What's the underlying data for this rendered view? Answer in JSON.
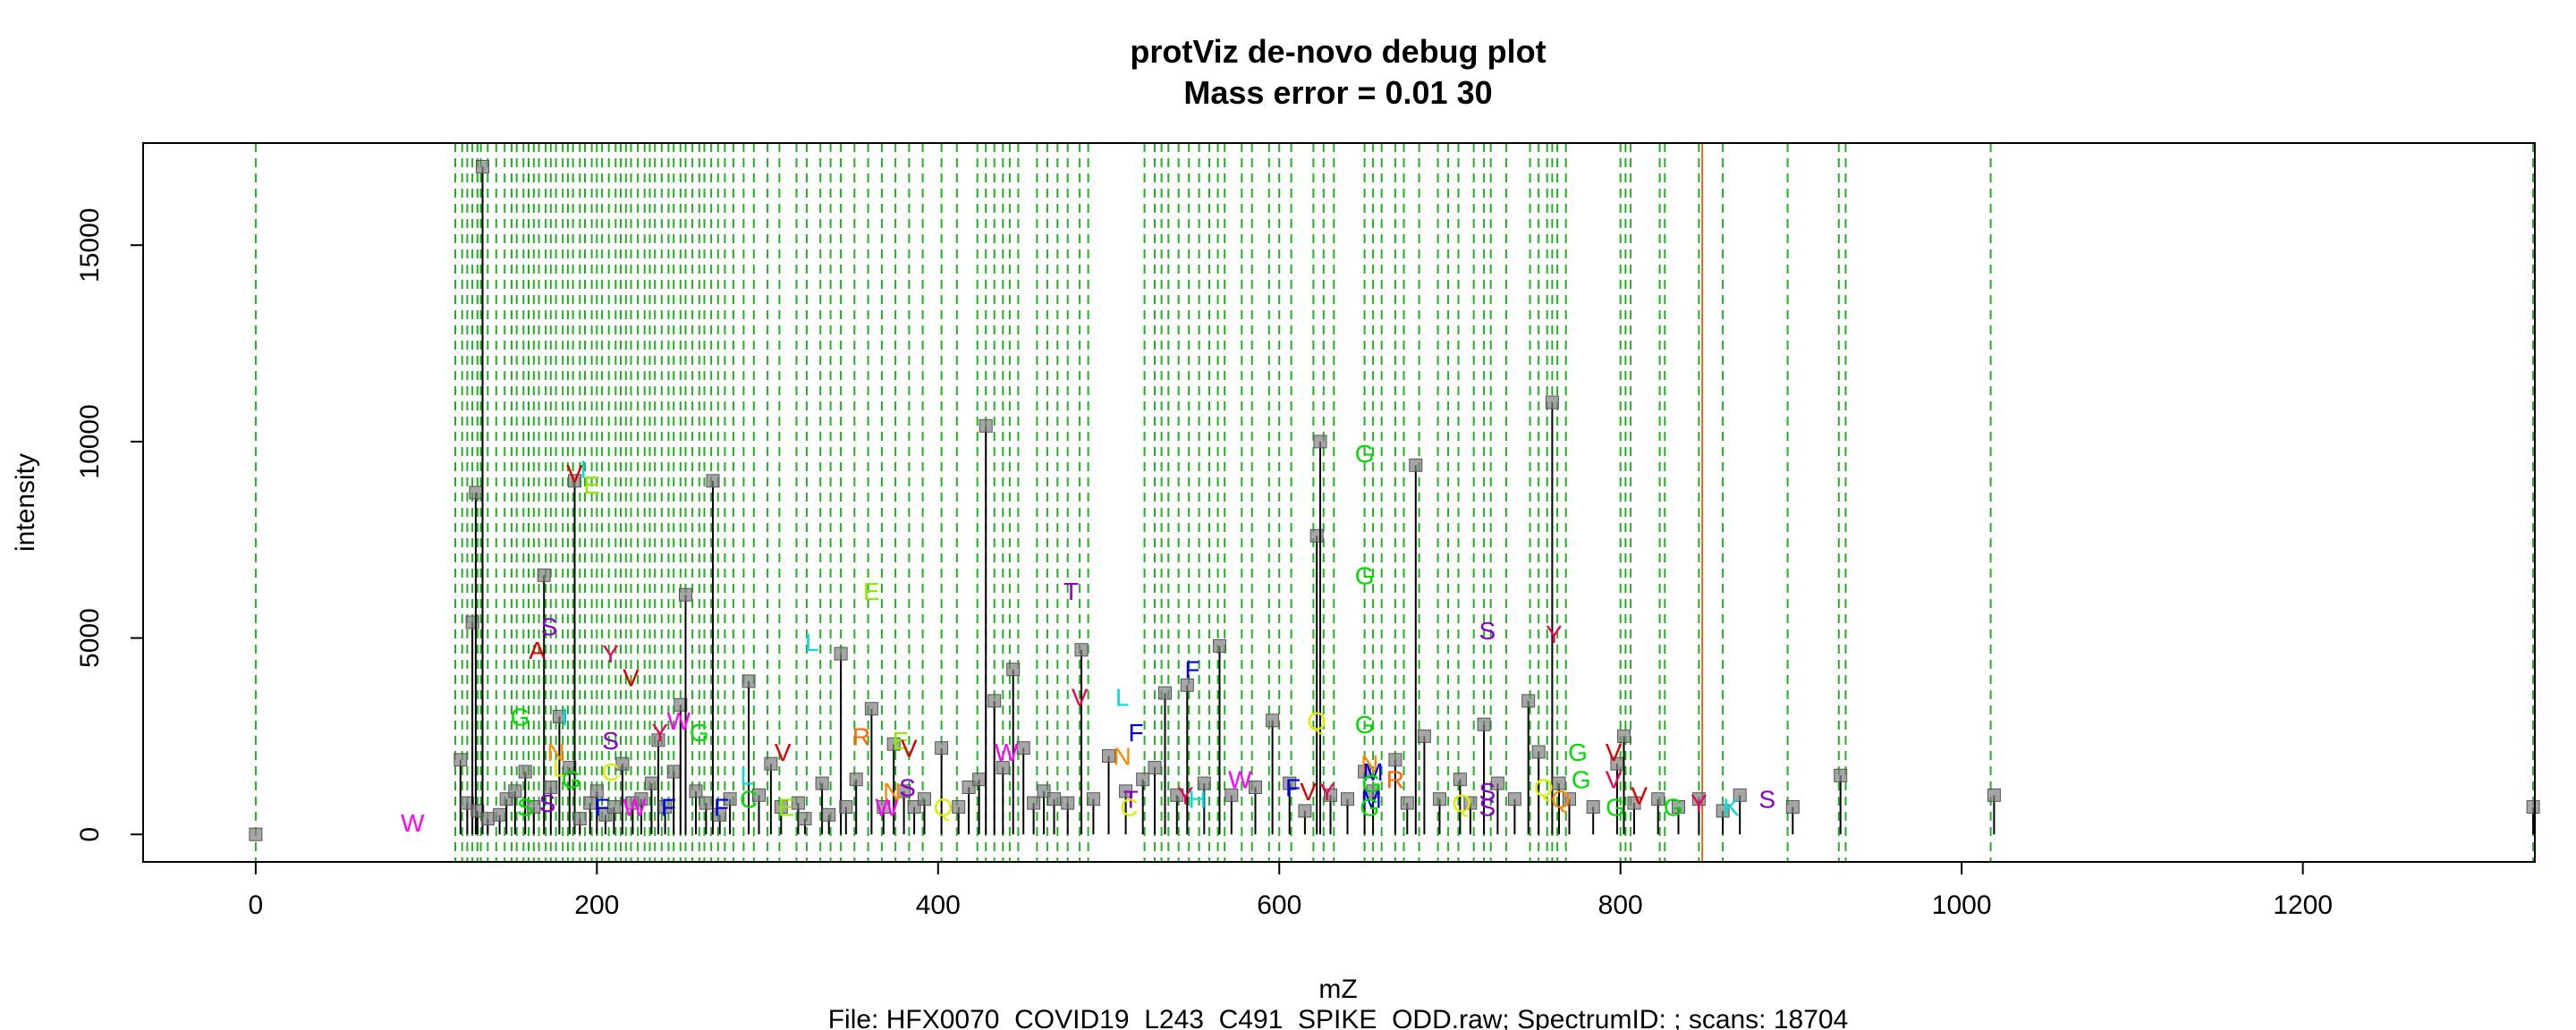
{
  "chart_data": {
    "type": "scatter",
    "title": "protViz de-novo debug plot",
    "subtitle": "Mass error = 0.01 30",
    "xlabel": "mZ",
    "ylabel": "intensity",
    "footer": "File: HFX0070_COVID19_L243_C491_SPIKE_ODD.raw; SpectrumID: ; scans: 18704",
    "xlim": [
      -66,
      1336
    ],
    "ylim": [
      -700,
      17600
    ],
    "x_ticks": [
      0,
      200,
      400,
      600,
      800,
      1000,
      1200
    ],
    "y_ticks": [
      0,
      5000,
      10000,
      15000
    ],
    "x_tick_labels": [
      "0",
      "200",
      "400",
      "600",
      "800",
      "1000",
      "1200"
    ],
    "y_tick_labels": [
      "0",
      "5000",
      "10000",
      "15000"
    ],
    "grid": false,
    "colors": {
      "green_line": "#22b022",
      "red_line": "#d2691e",
      "peak": "#000000",
      "point": "#808080"
    },
    "peaks": [
      {
        "mz": 0,
        "i": 0
      },
      {
        "mz": 120,
        "i": 1900
      },
      {
        "mz": 124,
        "i": 800
      },
      {
        "mz": 127,
        "i": 5400
      },
      {
        "mz": 129,
        "i": 8700
      },
      {
        "mz": 130,
        "i": 600
      },
      {
        "mz": 133,
        "i": 17000
      },
      {
        "mz": 136,
        "i": 400
      },
      {
        "mz": 143,
        "i": 500
      },
      {
        "mz": 147,
        "i": 900
      },
      {
        "mz": 152,
        "i": 1100
      },
      {
        "mz": 158,
        "i": 1600
      },
      {
        "mz": 163,
        "i": 700
      },
      {
        "mz": 169,
        "i": 6600
      },
      {
        "mz": 173,
        "i": 1200
      },
      {
        "mz": 178,
        "i": 3000
      },
      {
        "mz": 184,
        "i": 1700
      },
      {
        "mz": 187,
        "i": 9000
      },
      {
        "mz": 190,
        "i": 400
      },
      {
        "mz": 196,
        "i": 800
      },
      {
        "mz": 200,
        "i": 1100
      },
      {
        "mz": 205,
        "i": 500
      },
      {
        "mz": 210,
        "i": 700
      },
      {
        "mz": 215,
        "i": 1800
      },
      {
        "mz": 221,
        "i": 800
      },
      {
        "mz": 226,
        "i": 900
      },
      {
        "mz": 232,
        "i": 1300
      },
      {
        "mz": 236,
        "i": 2400
      },
      {
        "mz": 240,
        "i": 700
      },
      {
        "mz": 245,
        "i": 1600
      },
      {
        "mz": 249,
        "i": 3300
      },
      {
        "mz": 252,
        "i": 6100
      },
      {
        "mz": 258,
        "i": 1100
      },
      {
        "mz": 264,
        "i": 800
      },
      {
        "mz": 268,
        "i": 9000
      },
      {
        "mz": 272,
        "i": 500
      },
      {
        "mz": 278,
        "i": 900
      },
      {
        "mz": 289,
        "i": 3900
      },
      {
        "mz": 295,
        "i": 1000
      },
      {
        "mz": 302,
        "i": 1800
      },
      {
        "mz": 308,
        "i": 700
      },
      {
        "mz": 318,
        "i": 800
      },
      {
        "mz": 322,
        "i": 400
      },
      {
        "mz": 332,
        "i": 1300
      },
      {
        "mz": 336,
        "i": 500
      },
      {
        "mz": 343,
        "i": 4600
      },
      {
        "mz": 346,
        "i": 700
      },
      {
        "mz": 352,
        "i": 1400
      },
      {
        "mz": 361,
        "i": 3200
      },
      {
        "mz": 368,
        "i": 700
      },
      {
        "mz": 374,
        "i": 2300
      },
      {
        "mz": 380,
        "i": 1100
      },
      {
        "mz": 386,
        "i": 700
      },
      {
        "mz": 392,
        "i": 900
      },
      {
        "mz": 402,
        "i": 2200
      },
      {
        "mz": 412,
        "i": 700
      },
      {
        "mz": 418,
        "i": 1200
      },
      {
        "mz": 424,
        "i": 1400
      },
      {
        "mz": 428,
        "i": 10400
      },
      {
        "mz": 433,
        "i": 3400
      },
      {
        "mz": 438,
        "i": 1700
      },
      {
        "mz": 444,
        "i": 4200
      },
      {
        "mz": 450,
        "i": 2200
      },
      {
        "mz": 456,
        "i": 800
      },
      {
        "mz": 462,
        "i": 1100
      },
      {
        "mz": 468,
        "i": 900
      },
      {
        "mz": 476,
        "i": 800
      },
      {
        "mz": 484,
        "i": 4700
      },
      {
        "mz": 491,
        "i": 900
      },
      {
        "mz": 500,
        "i": 2000
      },
      {
        "mz": 510,
        "i": 1100
      },
      {
        "mz": 520,
        "i": 1400
      },
      {
        "mz": 527,
        "i": 1700
      },
      {
        "mz": 533,
        "i": 3600
      },
      {
        "mz": 540,
        "i": 1000
      },
      {
        "mz": 546,
        "i": 3800
      },
      {
        "mz": 556,
        "i": 1300
      },
      {
        "mz": 565,
        "i": 4800
      },
      {
        "mz": 572,
        "i": 1000
      },
      {
        "mz": 586,
        "i": 1200
      },
      {
        "mz": 596,
        "i": 2900
      },
      {
        "mz": 606,
        "i": 1300
      },
      {
        "mz": 615,
        "i": 600
      },
      {
        "mz": 622,
        "i": 7600
      },
      {
        "mz": 624,
        "i": 10000
      },
      {
        "mz": 630,
        "i": 1000
      },
      {
        "mz": 640,
        "i": 900
      },
      {
        "mz": 650,
        "i": 1600
      },
      {
        "mz": 655,
        "i": 1100
      },
      {
        "mz": 668,
        "i": 1900
      },
      {
        "mz": 675,
        "i": 800
      },
      {
        "mz": 680,
        "i": 9400
      },
      {
        "mz": 685,
        "i": 2500
      },
      {
        "mz": 694,
        "i": 900
      },
      {
        "mz": 706,
        "i": 1400
      },
      {
        "mz": 712,
        "i": 800
      },
      {
        "mz": 720,
        "i": 2800
      },
      {
        "mz": 728,
        "i": 1300
      },
      {
        "mz": 738,
        "i": 900
      },
      {
        "mz": 746,
        "i": 3400
      },
      {
        "mz": 752,
        "i": 2100
      },
      {
        "mz": 760,
        "i": 11000
      },
      {
        "mz": 764,
        "i": 1300
      },
      {
        "mz": 770,
        "i": 900
      },
      {
        "mz": 784,
        "i": 700
      },
      {
        "mz": 798,
        "i": 1800
      },
      {
        "mz": 802,
        "i": 2500
      },
      {
        "mz": 808,
        "i": 800
      },
      {
        "mz": 822,
        "i": 900
      },
      {
        "mz": 834,
        "i": 700
      },
      {
        "mz": 846,
        "i": 900
      },
      {
        "mz": 860,
        "i": 600
      },
      {
        "mz": 870,
        "i": 1000
      },
      {
        "mz": 901,
        "i": 700
      },
      {
        "mz": 929,
        "i": 1500
      },
      {
        "mz": 1019,
        "i": 1000
      },
      {
        "mz": 1335,
        "i": 700
      }
    ],
    "green_lines": [
      0,
      117,
      121,
      124,
      127,
      130,
      132,
      136,
      141,
      146,
      150,
      153,
      157,
      160,
      163,
      166,
      170,
      173,
      176,
      180,
      183,
      186,
      190,
      193,
      197,
      200,
      203,
      207,
      211,
      214,
      217,
      220,
      224,
      228,
      231,
      234,
      238,
      242,
      245,
      249,
      252,
      256,
      260,
      263,
      267,
      271,
      275,
      280,
      286,
      292,
      300,
      307,
      317,
      323,
      331,
      337,
      343,
      351,
      359,
      367,
      375,
      383,
      391,
      402,
      411,
      423,
      428,
      433,
      438,
      442,
      447,
      458,
      464,
      470,
      476,
      483,
      488,
      521,
      527,
      531,
      535,
      541,
      547,
      553,
      559,
      564,
      568,
      578,
      584,
      594,
      600,
      607,
      620,
      626,
      632,
      650,
      655,
      660,
      668,
      673,
      682,
      693,
      699,
      705,
      714,
      720,
      724,
      733,
      747,
      752,
      757,
      760,
      763,
      768,
      800,
      803,
      806,
      823,
      826,
      846,
      860,
      898,
      928,
      932,
      1017,
      1335
    ],
    "red_line": 848,
    "annotations": [
      {
        "mz": 92,
        "i": 300,
        "aa": "W",
        "color": "#ff00ff"
      },
      {
        "mz": 155,
        "i": 3000,
        "aa": "G",
        "color": "#00dd00"
      },
      {
        "mz": 158,
        "i": 700,
        "aa": "S",
        "color": "#00dd00"
      },
      {
        "mz": 165,
        "i": 4700,
        "aa": "A",
        "color": "#dd0000"
      },
      {
        "mz": 172,
        "i": 5300,
        "aa": "S",
        "color": "#8800cc"
      },
      {
        "mz": 176,
        "i": 2100,
        "aa": "N",
        "color": "#ff8800"
      },
      {
        "mz": 178,
        "i": 1700,
        "aa": "L",
        "color": "#ddee00"
      },
      {
        "mz": 181,
        "i": 3000,
        "aa": "I",
        "color": "#00dddd"
      },
      {
        "mz": 185,
        "i": 1400,
        "aa": "G",
        "color": "#00dd00"
      },
      {
        "mz": 187,
        "i": 9200,
        "aa": "V",
        "color": "#dd0000"
      },
      {
        "mz": 192,
        "i": 9300,
        "aa": "I",
        "color": "#00dddd"
      },
      {
        "mz": 197,
        "i": 8900,
        "aa": "E",
        "color": "#88ee00"
      },
      {
        "mz": 171,
        "i": 800,
        "aa": "S",
        "color": "#8800cc"
      },
      {
        "mz": 203,
        "i": 700,
        "aa": "F",
        "color": "#0000dd"
      },
      {
        "mz": 208,
        "i": 1600,
        "aa": "C",
        "color": "#ddee00"
      },
      {
        "mz": 208,
        "i": 2400,
        "aa": "S",
        "color": "#8800cc"
      },
      {
        "mz": 208,
        "i": 4600,
        "aa": "Y",
        "color": "#ee0055"
      },
      {
        "mz": 220,
        "i": 4000,
        "aa": "V",
        "color": "#dd0000"
      },
      {
        "mz": 222,
        "i": 700,
        "aa": "W",
        "color": "#ff00ff"
      },
      {
        "mz": 237,
        "i": 2600,
        "aa": "Y",
        "color": "#ee0055"
      },
      {
        "mz": 242,
        "i": 700,
        "aa": "F",
        "color": "#0000dd"
      },
      {
        "mz": 248,
        "i": 2900,
        "aa": "W",
        "color": "#ff00ff"
      },
      {
        "mz": 260,
        "i": 2600,
        "aa": "G",
        "color": "#00dd00"
      },
      {
        "mz": 273,
        "i": 700,
        "aa": "F",
        "color": "#0000dd"
      },
      {
        "mz": 288,
        "i": 1500,
        "aa": "L",
        "color": "#00dddd"
      },
      {
        "mz": 289,
        "i": 900,
        "aa": "C",
        "color": "#00dd00"
      },
      {
        "mz": 309,
        "i": 2100,
        "aa": "V",
        "color": "#dd0000"
      },
      {
        "mz": 311,
        "i": 700,
        "aa": "E",
        "color": "#88ee00"
      },
      {
        "mz": 326,
        "i": 4900,
        "aa": "L",
        "color": "#00dddd"
      },
      {
        "mz": 355,
        "i": 2500,
        "aa": "R",
        "color": "#ff6600"
      },
      {
        "mz": 361,
        "i": 6200,
        "aa": "E",
        "color": "#88ee00"
      },
      {
        "mz": 370,
        "i": 700,
        "aa": "W",
        "color": "#ff00ff"
      },
      {
        "mz": 373,
        "i": 1100,
        "aa": "N",
        "color": "#ff8800"
      },
      {
        "mz": 378,
        "i": 2400,
        "aa": "E",
        "color": "#88ee00"
      },
      {
        "mz": 382,
        "i": 1200,
        "aa": "S",
        "color": "#8800cc"
      },
      {
        "mz": 383,
        "i": 2200,
        "aa": "V",
        "color": "#dd0000"
      },
      {
        "mz": 403,
        "i": 700,
        "aa": "Q",
        "color": "#ddee00"
      },
      {
        "mz": 440,
        "i": 2100,
        "aa": "W",
        "color": "#ff00ff"
      },
      {
        "mz": 478,
        "i": 6200,
        "aa": "T",
        "color": "#8800cc"
      },
      {
        "mz": 483,
        "i": 3500,
        "aa": "V",
        "color": "#ee0055"
      },
      {
        "mz": 508,
        "i": 3500,
        "aa": "L",
        "color": "#00dddd"
      },
      {
        "mz": 508,
        "i": 2000,
        "aa": "N",
        "color": "#ff8800"
      },
      {
        "mz": 516,
        "i": 2600,
        "aa": "F",
        "color": "#0000dd"
      },
      {
        "mz": 513,
        "i": 900,
        "aa": "T",
        "color": "#8800cc"
      },
      {
        "mz": 512,
        "i": 700,
        "aa": "C",
        "color": "#ddee00"
      },
      {
        "mz": 545,
        "i": 1000,
        "aa": "Y",
        "color": "#ee0055"
      },
      {
        "mz": 549,
        "i": 4200,
        "aa": "F",
        "color": "#0000dd"
      },
      {
        "mz": 552,
        "i": 900,
        "aa": "H",
        "color": "#00dddd"
      },
      {
        "mz": 577,
        "i": 1400,
        "aa": "W",
        "color": "#ff00ff"
      },
      {
        "mz": 608,
        "i": 1200,
        "aa": "F",
        "color": "#0000dd"
      },
      {
        "mz": 617,
        "i": 1100,
        "aa": "V",
        "color": "#dd0000"
      },
      {
        "mz": 622,
        "i": 2900,
        "aa": "Q",
        "color": "#ddee00"
      },
      {
        "mz": 628,
        "i": 1100,
        "aa": "Y",
        "color": "#ee0055"
      },
      {
        "mz": 650,
        "i": 9700,
        "aa": "G",
        "color": "#00dd00"
      },
      {
        "mz": 650,
        "i": 6600,
        "aa": "G",
        "color": "#00dd00"
      },
      {
        "mz": 650,
        "i": 2800,
        "aa": "G",
        "color": "#00dd00"
      },
      {
        "mz": 653,
        "i": 1800,
        "aa": "N",
        "color": "#ff8800"
      },
      {
        "mz": 655,
        "i": 1600,
        "aa": "M",
        "color": "#0000dd"
      },
      {
        "mz": 654,
        "i": 1300,
        "aa": "G",
        "color": "#00dd00"
      },
      {
        "mz": 654,
        "i": 900,
        "aa": "M",
        "color": "#0000dd"
      },
      {
        "mz": 653,
        "i": 700,
        "aa": "G",
        "color": "#00dd00"
      },
      {
        "mz": 668,
        "i": 1400,
        "aa": "R",
        "color": "#ff6600"
      },
      {
        "mz": 707,
        "i": 800,
        "aa": "Q",
        "color": "#ddee00"
      },
      {
        "mz": 722,
        "i": 5200,
        "aa": "S",
        "color": "#8800cc"
      },
      {
        "mz": 722,
        "i": 1100,
        "aa": "S",
        "color": "#8800cc"
      },
      {
        "mz": 722,
        "i": 700,
        "aa": "S",
        "color": "#8800cc"
      },
      {
        "mz": 761,
        "i": 5100,
        "aa": "Y",
        "color": "#ee0055"
      },
      {
        "mz": 755,
        "i": 1200,
        "aa": "Q",
        "color": "#ddee00"
      },
      {
        "mz": 765,
        "i": 900,
        "aa": "Q",
        "color": "#ff8800"
      },
      {
        "mz": 775,
        "i": 2100,
        "aa": "G",
        "color": "#00dd00"
      },
      {
        "mz": 777,
        "i": 1400,
        "aa": "G",
        "color": "#00dd00"
      },
      {
        "mz": 796,
        "i": 2100,
        "aa": "V",
        "color": "#dd0000"
      },
      {
        "mz": 796,
        "i": 1400,
        "aa": "V",
        "color": "#ee0055"
      },
      {
        "mz": 797,
        "i": 700,
        "aa": "G",
        "color": "#00dd00"
      },
      {
        "mz": 811,
        "i": 1000,
        "aa": "V",
        "color": "#dd0000"
      },
      {
        "mz": 831,
        "i": 700,
        "aa": "G",
        "color": "#00dd00"
      },
      {
        "mz": 846,
        "i": 800,
        "aa": "Y",
        "color": "#ee0055"
      },
      {
        "mz": 865,
        "i": 700,
        "aa": "K",
        "color": "#00dddd"
      },
      {
        "mz": 886,
        "i": 900,
        "aa": "S",
        "color": "#8800cc"
      }
    ]
  }
}
